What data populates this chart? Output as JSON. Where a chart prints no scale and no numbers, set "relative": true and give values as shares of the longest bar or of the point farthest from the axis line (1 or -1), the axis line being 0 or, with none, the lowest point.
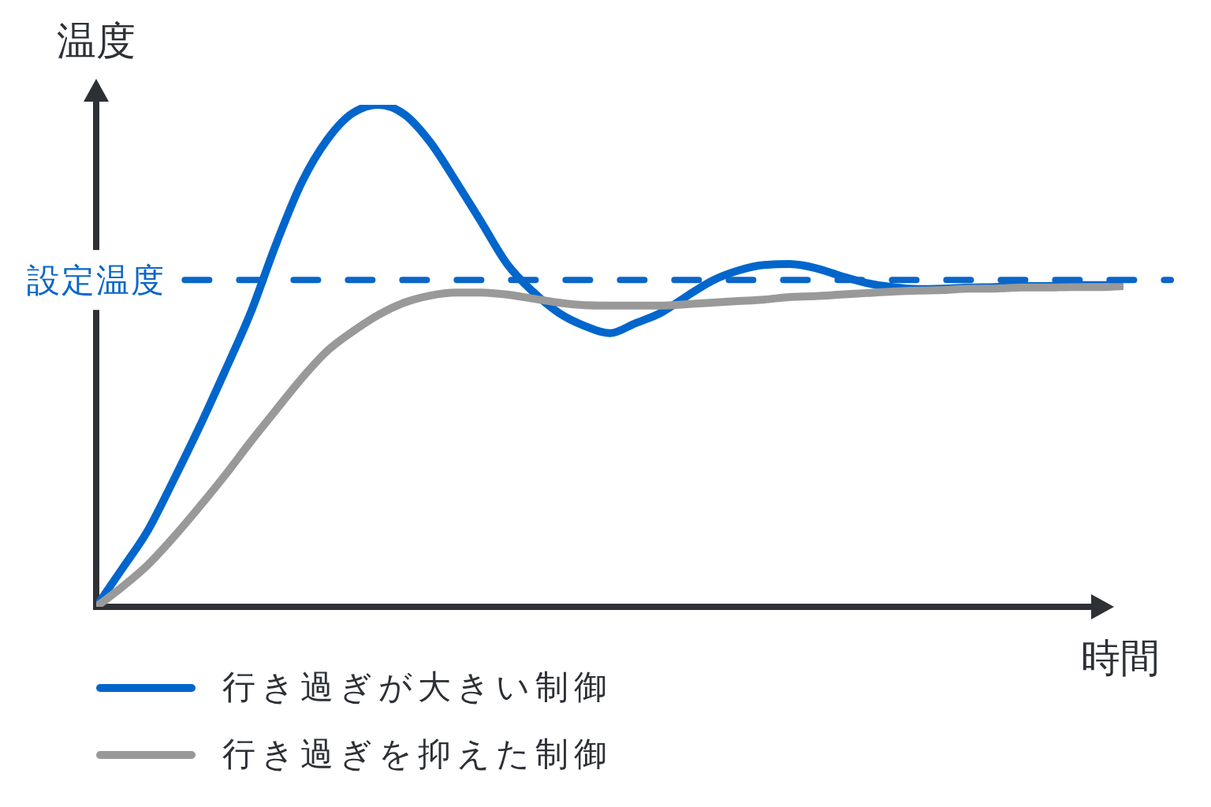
{
  "chart_data": {
    "type": "line",
    "relative": true,
    "ylabel": "温度",
    "xlabel": "時間",
    "categories": [
      null,
      null,
      null,
      null,
      null,
      null,
      null,
      null,
      null,
      null,
      null,
      null,
      null,
      null,
      null,
      null,
      null,
      null,
      null,
      null,
      null,
      null,
      null,
      null,
      null,
      null,
      null,
      null,
      null,
      null,
      null,
      null,
      null,
      null,
      null,
      null,
      null,
      null,
      null,
      null,
      null
    ],
    "series": [
      {
        "name": "行き過ぎが大きい制御",
        "color": "#0066cc",
        "values": [
          0,
          0.075,
          0.151,
          0.251,
          0.356,
          0.468,
          0.584,
          0.722,
          0.845,
          0.931,
          0.984,
          1,
          0.981,
          0.926,
          0.848,
          0.766,
          0.683,
          0.628,
          0.586,
          0.56,
          0.545,
          0.565,
          0.586,
          0.619,
          0.65,
          0.67,
          0.681,
          0.683,
          0.675,
          0.659,
          0.645,
          0.637,
          0.633,
          0.634,
          0.636,
          0.637,
          0.639,
          0.639,
          0.641,
          0.641,
          0.641
        ]
      },
      {
        "name": "行き過ぎを抑えた制御",
        "color": "#999999",
        "values": [
          0,
          0.039,
          0.083,
          0.138,
          0.198,
          0.261,
          0.328,
          0.392,
          0.455,
          0.51,
          0.549,
          0.582,
          0.606,
          0.62,
          0.626,
          0.626,
          0.622,
          0.614,
          0.606,
          0.601,
          0.6,
          0.6,
          0.6,
          0.603,
          0.606,
          0.609,
          0.612,
          0.617,
          0.619,
          0.622,
          0.625,
          0.628,
          0.63,
          0.631,
          0.634,
          0.634,
          0.636,
          0.636,
          0.637,
          0.637,
          0.639
        ]
      }
    ],
    "ref_lines": [
      {
        "axis": "y",
        "value": 0.651,
        "label": "設定温度",
        "color": "#0a66c8",
        "line_style": "dashed"
      }
    ],
    "legend": "bottom left"
  }
}
